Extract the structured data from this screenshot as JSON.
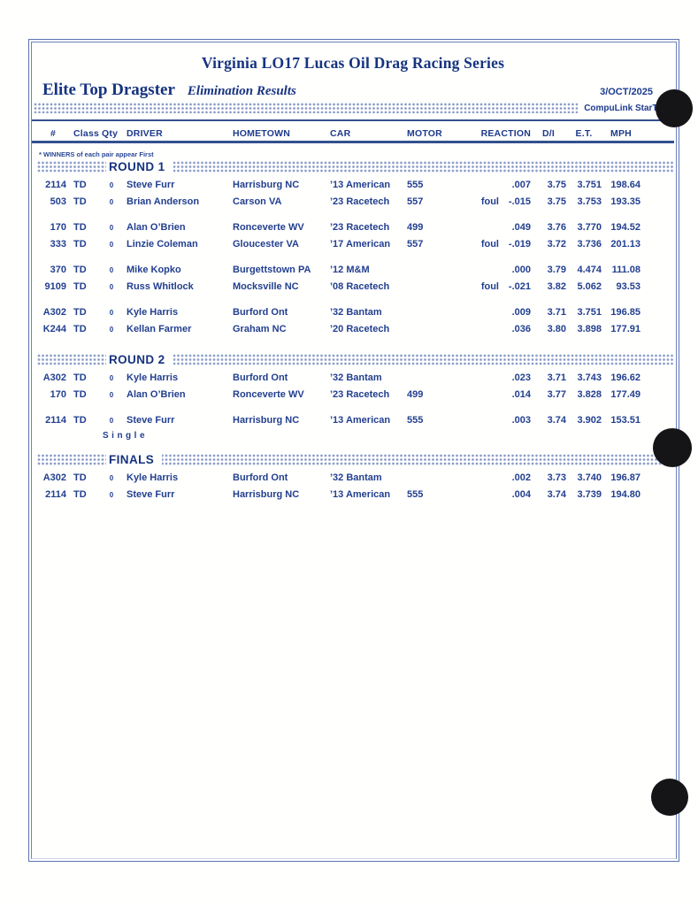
{
  "page": {
    "title": "Virginia LO17 Lucas Oil Drag Racing Series",
    "class_name": "Elite Top Dragster",
    "report_type": "Elimination Results",
    "date": "3/OCT/2025",
    "timing_system": "CompuLink StarTrak",
    "winners_note": "* WINNERS of each pair appear First"
  },
  "table": {
    "headers": [
      "#",
      "Class",
      "Qty",
      "DRIVER",
      "HOMETOWN",
      "CAR",
      "MOTOR",
      "REACTION",
      "D/I",
      "E.T.",
      "MPH"
    ]
  },
  "sections": [
    {
      "label": "ROUND 1",
      "groups": [
        {
          "rows": [
            {
              "num": "2114",
              "cls": "TD",
              "qty": "0",
              "driver": "Steve Furr",
              "hometown": "Harrisburg  NC",
              "car": "’13 American",
              "motor": "555",
              "foul": "",
              "reaction": ".007",
              "di": "3.75",
              "et": "3.751",
              "mph": "198.64"
            },
            {
              "num": "503",
              "cls": "TD",
              "qty": "0",
              "driver": "Brian Anderson",
              "hometown": "Carson  VA",
              "car": "’23 Racetech",
              "motor": "557",
              "foul": "foul",
              "reaction": "-.015",
              "di": "3.75",
              "et": "3.753",
              "mph": "193.35"
            }
          ]
        },
        {
          "rows": [
            {
              "num": "170",
              "cls": "TD",
              "qty": "0",
              "driver": "Alan O’Brien",
              "hometown": "Ronceverte  WV",
              "car": "’23 Racetech",
              "motor": "499",
              "foul": "",
              "reaction": ".049",
              "di": "3.76",
              "et": "3.770",
              "mph": "194.52"
            },
            {
              "num": "333",
              "cls": "TD",
              "qty": "0",
              "driver": "Linzie Coleman",
              "hometown": "Gloucester  VA",
              "car": "’17 American",
              "motor": "557",
              "foul": "foul",
              "reaction": "-.019",
              "di": "3.72",
              "et": "3.736",
              "mph": "201.13"
            }
          ]
        },
        {
          "rows": [
            {
              "num": "370",
              "cls": "TD",
              "qty": "0",
              "driver": "Mike Kopko",
              "hometown": "Burgettstown  PA",
              "car": "’12 M&M",
              "motor": "",
              "foul": "",
              "reaction": ".000",
              "di": "3.79",
              "et": "4.474",
              "mph": "111.08"
            },
            {
              "num": "9109",
              "cls": "TD",
              "qty": "0",
              "driver": "Russ Whitlock",
              "hometown": "Mocksville  NC",
              "car": "’08 Racetech",
              "motor": "",
              "foul": "foul",
              "reaction": "-.021",
              "di": "3.82",
              "et": "5.062",
              "mph": "93.53"
            }
          ]
        },
        {
          "rows": [
            {
              "num": "A302",
              "cls": "TD",
              "qty": "0",
              "driver": "Kyle Harris",
              "hometown": "Burford  Ont",
              "car": "’32 Bantam",
              "motor": "",
              "foul": "",
              "reaction": ".009",
              "di": "3.71",
              "et": "3.751",
              "mph": "196.85"
            },
            {
              "num": "K244",
              "cls": "TD",
              "qty": "0",
              "driver": "Kellan Farmer",
              "hometown": "Graham  NC",
              "car": "’20 Racetech",
              "motor": "",
              "foul": "",
              "reaction": ".036",
              "di": "3.80",
              "et": "3.898",
              "mph": "177.91"
            }
          ]
        }
      ]
    },
    {
      "label": "ROUND 2",
      "spaced": true,
      "groups": [
        {
          "rows": [
            {
              "num": "A302",
              "cls": "TD",
              "qty": "0",
              "driver": "Kyle Harris",
              "hometown": "Burford  Ont",
              "car": "’32 Bantam",
              "motor": "",
              "foul": "",
              "reaction": ".023",
              "di": "3.71",
              "et": "3.743",
              "mph": "196.62"
            },
            {
              "num": "170",
              "cls": "TD",
              "qty": "0",
              "driver": "Alan O’Brien",
              "hometown": "Ronceverte  WV",
              "car": "’23 Racetech",
              "motor": "499",
              "foul": "",
              "reaction": ".014",
              "di": "3.77",
              "et": "3.828",
              "mph": "177.49"
            }
          ]
        },
        {
          "rows": [
            {
              "num": "2114",
              "cls": "TD",
              "qty": "0",
              "driver": "Steve Furr",
              "hometown": "Harrisburg  NC",
              "car": "’13 American",
              "motor": "555",
              "foul": "",
              "reaction": ".003",
              "di": "3.74",
              "et": "3.902",
              "mph": "153.51"
            }
          ],
          "note": "Single"
        }
      ]
    },
    {
      "label": "FINALS",
      "spaced": true,
      "groups": [
        {
          "rows": [
            {
              "num": "A302",
              "cls": "TD",
              "qty": "0",
              "driver": "Kyle Harris",
              "hometown": "Burford  Ont",
              "car": "’32 Bantam",
              "motor": "",
              "foul": "",
              "reaction": ".002",
              "di": "3.73",
              "et": "3.740",
              "mph": "196.87"
            },
            {
              "num": "2114",
              "cls": "TD",
              "qty": "0",
              "driver": "Steve Furr",
              "hometown": "Harrisburg  NC",
              "car": "’13 American",
              "motor": "555",
              "foul": "",
              "reaction": ".004",
              "di": "3.74",
              "et": "3.739",
              "mph": "194.80"
            }
          ]
        }
      ]
    }
  ],
  "colors": {
    "ink_blue": "#223f8f",
    "title_blue": "#16337f",
    "rule_blue": "#33508f",
    "punch_black": "#151517"
  }
}
